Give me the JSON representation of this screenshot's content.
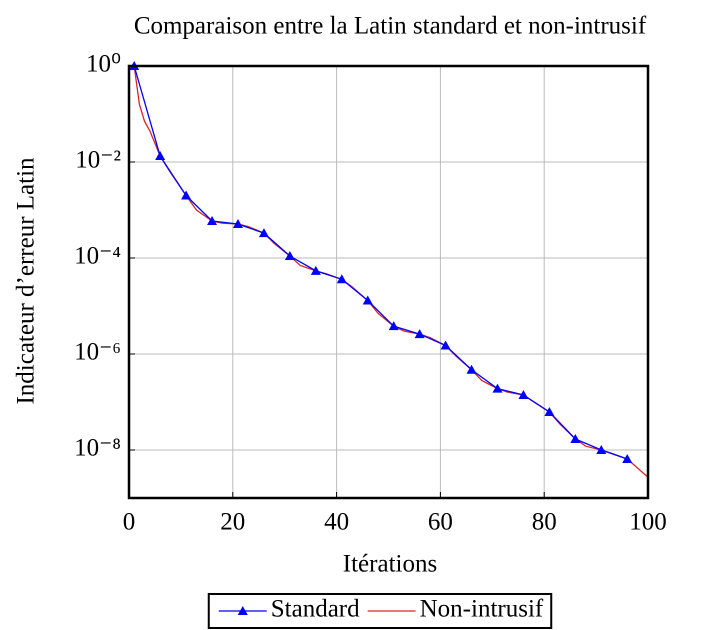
{
  "chart_data": {
    "type": "line",
    "title": "Comparaison entre la Latin standard et non-intrusif",
    "x_label": "Itérations",
    "y_label": "Indicateur d’erreur Latin",
    "xlim": [
      0,
      100
    ],
    "xticks": [
      0,
      20,
      40,
      60,
      80,
      100
    ],
    "ylim": [
      1e-09,
      1
    ],
    "log_y": true,
    "yticks": [
      {
        "value": 1,
        "label": "10⁰"
      },
      {
        "value": 0.01,
        "label": "10⁻²"
      },
      {
        "value": 0.0001,
        "label": "10⁻⁴"
      },
      {
        "value": 1e-06,
        "label": "10⁻⁶"
      },
      {
        "value": 1e-08,
        "label": "10⁻⁸"
      }
    ],
    "grid": true,
    "legend": "bottom",
    "series": [
      {
        "name": "Standard",
        "color": "#0000ff",
        "marker": "triangle",
        "x": [
          1,
          6,
          11,
          16,
          21,
          26,
          31,
          36,
          41,
          46,
          51,
          56,
          61,
          66,
          71,
          76,
          81,
          86,
          91,
          96
        ],
        "values": [
          1,
          0.0133,
          0.002,
          0.00059,
          0.00051,
          0.00033,
          0.00011,
          5.4e-05,
          3.6e-05,
          1.3e-05,
          3.8e-06,
          2.6e-06,
          1.5e-06,
          4.7e-07,
          1.9e-07,
          1.4e-07,
          6.2e-08,
          1.7e-08,
          1e-08,
          6.5e-09
        ]
      },
      {
        "name": "Non-intrusif",
        "color": "#d62728",
        "marker": "none",
        "x": [
          1,
          2,
          3,
          4,
          6,
          8,
          11,
          13,
          16,
          18,
          21,
          23,
          26,
          28,
          31,
          33,
          36,
          38,
          41,
          43,
          46,
          48,
          51,
          53,
          56,
          58,
          61,
          63,
          66,
          68,
          71,
          73,
          76,
          78,
          81,
          83,
          86,
          88,
          91,
          93,
          96,
          98,
          100
        ],
        "values": [
          1,
          0.16,
          0.07,
          0.045,
          0.0133,
          0.006,
          0.002,
          0.001,
          0.00059,
          0.00053,
          0.00051,
          0.00045,
          0.00033,
          0.0002,
          0.00011,
          7e-05,
          5.4e-05,
          4.7e-05,
          3.6e-05,
          2.5e-05,
          1.3e-05,
          7e-06,
          3.8e-06,
          3e-06,
          2.6e-06,
          2.2e-06,
          1.5e-06,
          9e-07,
          4.7e-07,
          2.8e-07,
          1.9e-07,
          1.6e-07,
          1.4e-07,
          1e-07,
          6.2e-08,
          3.5e-08,
          1.7e-08,
          1.2e-08,
          1e-08,
          8.5e-09,
          6.5e-09,
          4.2e-09,
          2.7e-09
        ]
      }
    ]
  }
}
